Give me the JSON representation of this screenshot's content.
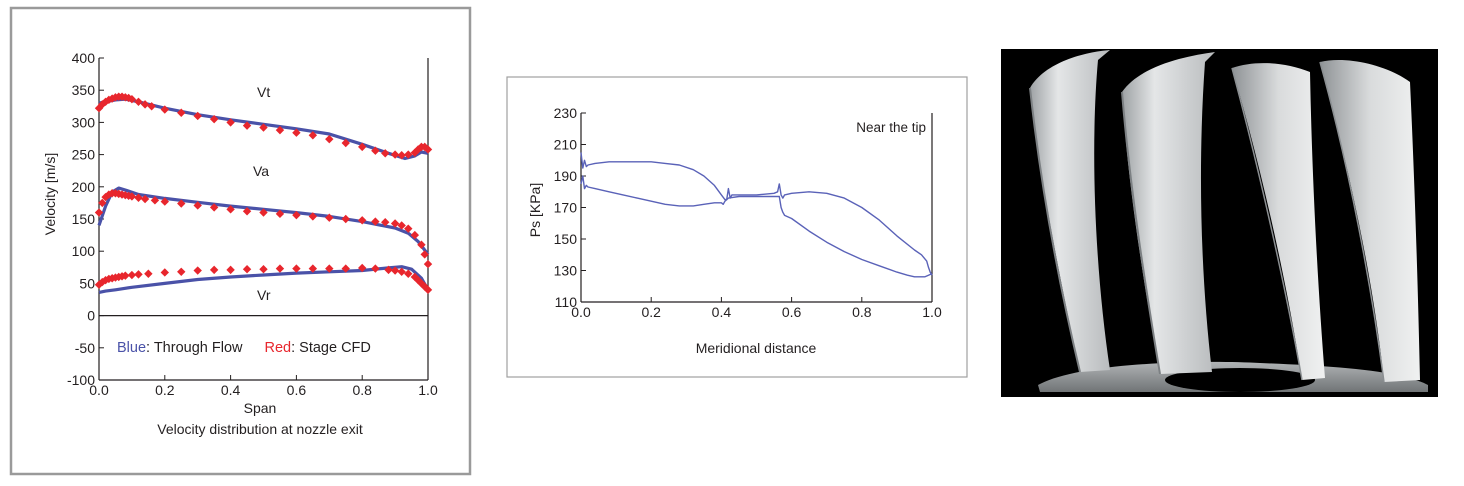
{
  "figures": {
    "velocity_panel": {
      "caption": "Velocity distribution at nozzle exit",
      "legend_blue_word": "Blue",
      "legend_blue_text": ": Through Flow",
      "legend_red_word": "Red",
      "legend_red_text": ": Stage CFD",
      "label_vt": "Vt",
      "label_va": "Va",
      "label_vr": "Vr"
    },
    "pressure_panel": {
      "annotation": "Near the tip"
    },
    "blade_render": {
      "background": "#000000"
    }
  },
  "colors": {
    "through_flow": "#4a52a8",
    "stage_cfd": "#e8262d",
    "pressure_line": "#5a62b8",
    "frame_left": "#9a9a9a",
    "frame_mid": "#a0a0a0",
    "blade": "#cfd2d4"
  },
  "chart_data": [
    {
      "type": "line",
      "title": "",
      "xlabel": "Span",
      "ylabel": "Velocity [m/s]",
      "xlim": [
        0,
        1
      ],
      "ylim": [
        -100,
        400
      ],
      "x_ticks": [
        0.0,
        0.2,
        0.4,
        0.6,
        0.8,
        1.0
      ],
      "x_tick_labels": [
        "0.0",
        "0.2",
        "0.4",
        "0.6",
        "0.8",
        "1.0"
      ],
      "y_ticks": [
        -100,
        -50,
        0,
        50,
        100,
        150,
        200,
        250,
        300,
        350,
        400
      ],
      "y_tick_labels": [
        "-100",
        "-50",
        "0",
        "50",
        "100",
        "150",
        "200",
        "250",
        "300",
        "350",
        "400"
      ],
      "grid": false,
      "series": [
        {
          "name": "Through Flow",
          "component": "Vt",
          "style": "line",
          "x": [
            0.0,
            0.02,
            0.05,
            0.08,
            0.12,
            0.2,
            0.3,
            0.4,
            0.5,
            0.6,
            0.7,
            0.8,
            0.88,
            0.93,
            0.96,
            0.98,
            1.0
          ],
          "y": [
            330,
            332,
            335,
            336,
            332,
            322,
            312,
            304,
            297,
            290,
            282,
            266,
            252,
            244,
            248,
            254,
            252
          ]
        },
        {
          "name": "Through Flow",
          "component": "Va",
          "style": "line",
          "x": [
            0.0,
            0.02,
            0.04,
            0.06,
            0.08,
            0.12,
            0.2,
            0.3,
            0.4,
            0.5,
            0.6,
            0.7,
            0.8,
            0.9,
            0.94,
            0.97,
            1.0
          ],
          "y": [
            140,
            170,
            192,
            198,
            195,
            188,
            182,
            176,
            170,
            165,
            160,
            154,
            146,
            136,
            128,
            115,
            95
          ]
        },
        {
          "name": "Through Flow",
          "component": "Vr",
          "style": "line",
          "x": [
            0.0,
            0.02,
            0.05,
            0.1,
            0.2,
            0.3,
            0.4,
            0.5,
            0.6,
            0.7,
            0.8,
            0.88,
            0.92,
            0.95,
            0.98,
            1.0
          ],
          "y": [
            36,
            38,
            40,
            44,
            50,
            56,
            60,
            63,
            66,
            68,
            70,
            74,
            76,
            72,
            58,
            40
          ]
        },
        {
          "name": "Stage CFD",
          "component": "Vt",
          "style": "markers",
          "x": [
            0.0,
            0.01,
            0.02,
            0.03,
            0.04,
            0.05,
            0.06,
            0.07,
            0.08,
            0.09,
            0.1,
            0.12,
            0.14,
            0.16,
            0.2,
            0.25,
            0.3,
            0.35,
            0.4,
            0.45,
            0.5,
            0.55,
            0.6,
            0.65,
            0.7,
            0.75,
            0.8,
            0.84,
            0.87,
            0.9,
            0.92,
            0.94,
            0.96,
            0.97,
            0.98,
            0.99,
            1.0
          ],
          "y": [
            322,
            328,
            332,
            335,
            337,
            339,
            340,
            340,
            339,
            338,
            336,
            332,
            328,
            325,
            320,
            315,
            310,
            305,
            300,
            295,
            292,
            288,
            284,
            280,
            274,
            268,
            262,
            256,
            252,
            250,
            249,
            250,
            253,
            258,
            262,
            262,
            258
          ]
        },
        {
          "name": "Stage CFD",
          "component": "Va",
          "style": "markers",
          "x": [
            0.0,
            0.01,
            0.02,
            0.03,
            0.04,
            0.05,
            0.06,
            0.07,
            0.08,
            0.09,
            0.1,
            0.12,
            0.14,
            0.17,
            0.2,
            0.25,
            0.3,
            0.35,
            0.4,
            0.45,
            0.5,
            0.55,
            0.6,
            0.65,
            0.7,
            0.75,
            0.8,
            0.84,
            0.87,
            0.9,
            0.92,
            0.94,
            0.96,
            0.98,
            0.99,
            1.0
          ],
          "y": [
            160,
            175,
            184,
            188,
            190,
            190,
            189,
            188,
            187,
            186,
            185,
            183,
            181,
            179,
            177,
            174,
            171,
            168,
            165,
            162,
            160,
            158,
            156,
            154,
            152,
            150,
            148,
            146,
            145,
            143,
            140,
            135,
            125,
            110,
            95,
            80
          ]
        },
        {
          "name": "Stage CFD",
          "component": "Vr",
          "style": "markers",
          "x": [
            0.0,
            0.01,
            0.02,
            0.03,
            0.04,
            0.05,
            0.06,
            0.07,
            0.08,
            0.1,
            0.12,
            0.15,
            0.2,
            0.25,
            0.3,
            0.35,
            0.4,
            0.45,
            0.5,
            0.55,
            0.6,
            0.65,
            0.7,
            0.75,
            0.8,
            0.84,
            0.88,
            0.9,
            0.92,
            0.94,
            0.96,
            0.97,
            0.98,
            0.99,
            1.0
          ],
          "y": [
            48,
            52,
            55,
            57,
            58,
            59,
            60,
            61,
            62,
            63,
            64,
            65,
            67,
            68,
            70,
            71,
            71,
            72,
            72,
            73,
            73,
            73,
            73,
            73,
            74,
            73,
            71,
            70,
            68,
            65,
            60,
            55,
            50,
            45,
            40
          ]
        }
      ]
    },
    {
      "type": "line",
      "title": "",
      "xlabel": "Meridional distance",
      "ylabel": "Ps [KPa]",
      "xlim": [
        0,
        1
      ],
      "ylim": [
        110,
        230
      ],
      "x_ticks": [
        0.0,
        0.2,
        0.4,
        0.6,
        0.8,
        1.0
      ],
      "x_tick_labels": [
        "0.0",
        "0.2",
        "0.4",
        "0.6",
        "0.8",
        "1.0"
      ],
      "y_ticks": [
        110,
        130,
        150,
        170,
        190,
        210,
        230
      ],
      "y_tick_labels": [
        "110",
        "130",
        "150",
        "170",
        "190",
        "210",
        "230"
      ],
      "grid": false,
      "series": [
        {
          "name": "",
          "style": "line",
          "x": [
            0.0,
            0.005,
            0.01,
            0.015,
            0.02,
            0.04,
            0.08,
            0.12,
            0.16,
            0.2,
            0.24,
            0.28,
            0.32,
            0.35,
            0.38,
            0.4,
            0.41,
            0.415,
            0.42,
            0.425,
            0.43,
            0.45,
            0.5,
            0.55,
            0.56,
            0.565,
            0.57,
            0.575,
            0.58,
            0.6,
            0.65,
            0.7,
            0.75,
            0.8,
            0.85,
            0.9,
            0.95,
            0.97,
            0.985,
            0.99,
            0.995,
            1.0
          ],
          "y": [
            205,
            195,
            200,
            196,
            197,
            198,
            199,
            199,
            199,
            199,
            198,
            197,
            194,
            190,
            184,
            178,
            175,
            175,
            182,
            176,
            178,
            178,
            178,
            179,
            180,
            185,
            178,
            176,
            178,
            179,
            180,
            179,
            176,
            170,
            162,
            152,
            143,
            140,
            136,
            132,
            129,
            127
          ]
        },
        {
          "name": "",
          "style": "line",
          "x": [
            0.0,
            0.005,
            0.01,
            0.015,
            0.02,
            0.04,
            0.08,
            0.12,
            0.16,
            0.2,
            0.24,
            0.28,
            0.32,
            0.35,
            0.38,
            0.4,
            0.405,
            0.41,
            0.42,
            0.45,
            0.5,
            0.55,
            0.565,
            0.57,
            0.575,
            0.58,
            0.6,
            0.65,
            0.7,
            0.75,
            0.8,
            0.85,
            0.9,
            0.93,
            0.95,
            0.97,
            0.98,
            0.99,
            1.0
          ],
          "y": [
            185,
            190,
            182,
            184,
            183,
            182,
            180,
            178,
            176,
            174,
            172,
            171,
            171,
            172,
            173,
            173,
            172,
            174,
            176,
            177,
            177,
            177,
            177,
            170,
            167,
            165,
            163,
            155,
            148,
            142,
            137,
            133,
            129,
            127,
            126,
            126,
            126,
            127,
            128
          ]
        }
      ]
    }
  ]
}
